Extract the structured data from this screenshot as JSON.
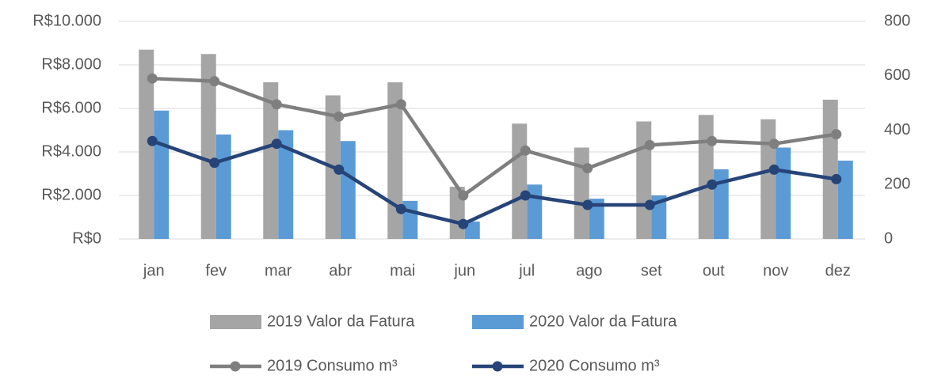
{
  "chart_data": {
    "type": "combo",
    "categories": [
      "jan",
      "fev",
      "mar",
      "abr",
      "mai",
      "jun",
      "jul",
      "ago",
      "set",
      "out",
      "nov",
      "dez"
    ],
    "series": [
      {
        "name": "2019 Valor da Fatura",
        "type": "bar",
        "color": "#a5a5a5",
        "values": [
          8700,
          8500,
          7200,
          6600,
          7200,
          2400,
          5300,
          4200,
          5400,
          5700,
          5500,
          6400
        ]
      },
      {
        "name": "2020 Valor da Fatura",
        "type": "bar",
        "color": "#5b9bd5",
        "values": [
          5900,
          4800,
          5000,
          4500,
          1750,
          800,
          2500,
          1850,
          2000,
          3200,
          4200,
          3600
        ]
      },
      {
        "name": "2019 Consumo m³",
        "type": "line",
        "axis": "y2",
        "color": "#7f7f7f",
        "values": [
          590,
          580,
          495,
          450,
          495,
          160,
          325,
          260,
          345,
          360,
          350,
          385
        ]
      },
      {
        "name": "2020 Consumo m³",
        "type": "line",
        "axis": "y2",
        "color": "#264478",
        "values": [
          360,
          280,
          350,
          255,
          110,
          55,
          160,
          125,
          125,
          200,
          255,
          220
        ]
      }
    ],
    "ylim": [
      0,
      10000
    ],
    "yticks": [
      {
        "value": 0,
        "label": "R$0"
      },
      {
        "value": 2000,
        "label": "R$2.000"
      },
      {
        "value": 4000,
        "label": "R$4.000"
      },
      {
        "value": 6000,
        "label": "R$6.000"
      },
      {
        "value": 8000,
        "label": "R$8.000"
      },
      {
        "value": 10000,
        "label": "R$10.000"
      }
    ],
    "y2lim": [
      0,
      800
    ],
    "y2ticks": [
      0,
      200,
      400,
      600,
      800
    ],
    "grid": true
  }
}
